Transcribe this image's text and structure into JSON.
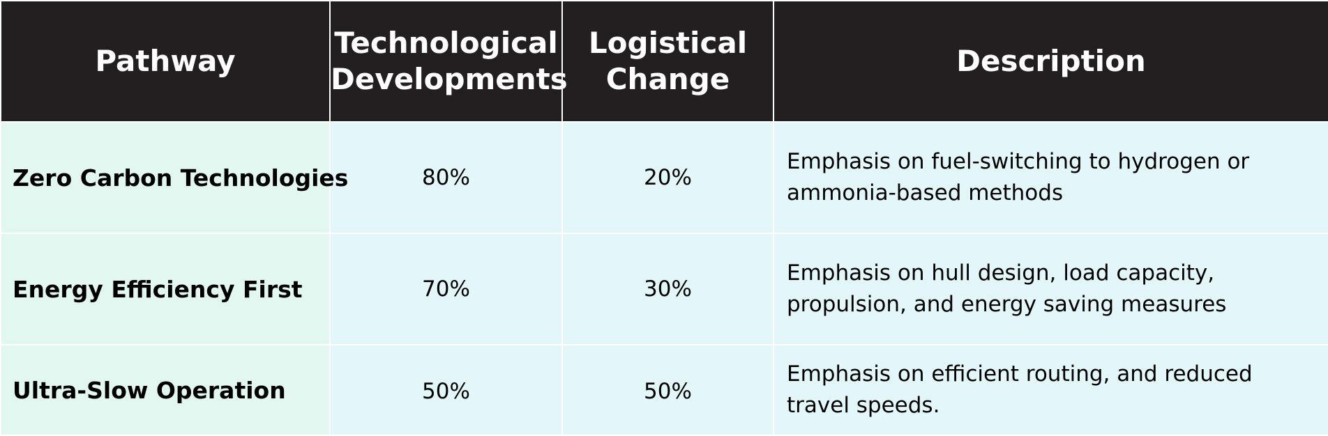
{
  "headers": {
    "pathway": "Pathway",
    "tech_line1": "Technological",
    "tech_line2": "Developments",
    "log_line1": "Logistical",
    "log_line2": "Change",
    "description": "Description"
  },
  "rows": [
    {
      "pathway": "Zero Carbon Technologies",
      "technological": "80%",
      "logistical": "20%",
      "description": "Emphasis on fuel-switching to hydrogen or ammonia-based methods"
    },
    {
      "pathway": "Energy Efficiency First",
      "technological": "70%",
      "logistical": "30%",
      "description": "Emphasis on hull design, load capacity, propulsion, and energy saving measures"
    },
    {
      "pathway": "Ultra-Slow Operation",
      "technological": "50%",
      "logistical": "50%",
      "description": "Emphasis on efficient routing, and reduced travel speeds."
    }
  ],
  "colors": {
    "header_bg": "#231f20",
    "header_text": "#ffffff",
    "pathway_cell_bg": "#e3f7f1",
    "data_cell_bg": "#e3f6fa"
  }
}
